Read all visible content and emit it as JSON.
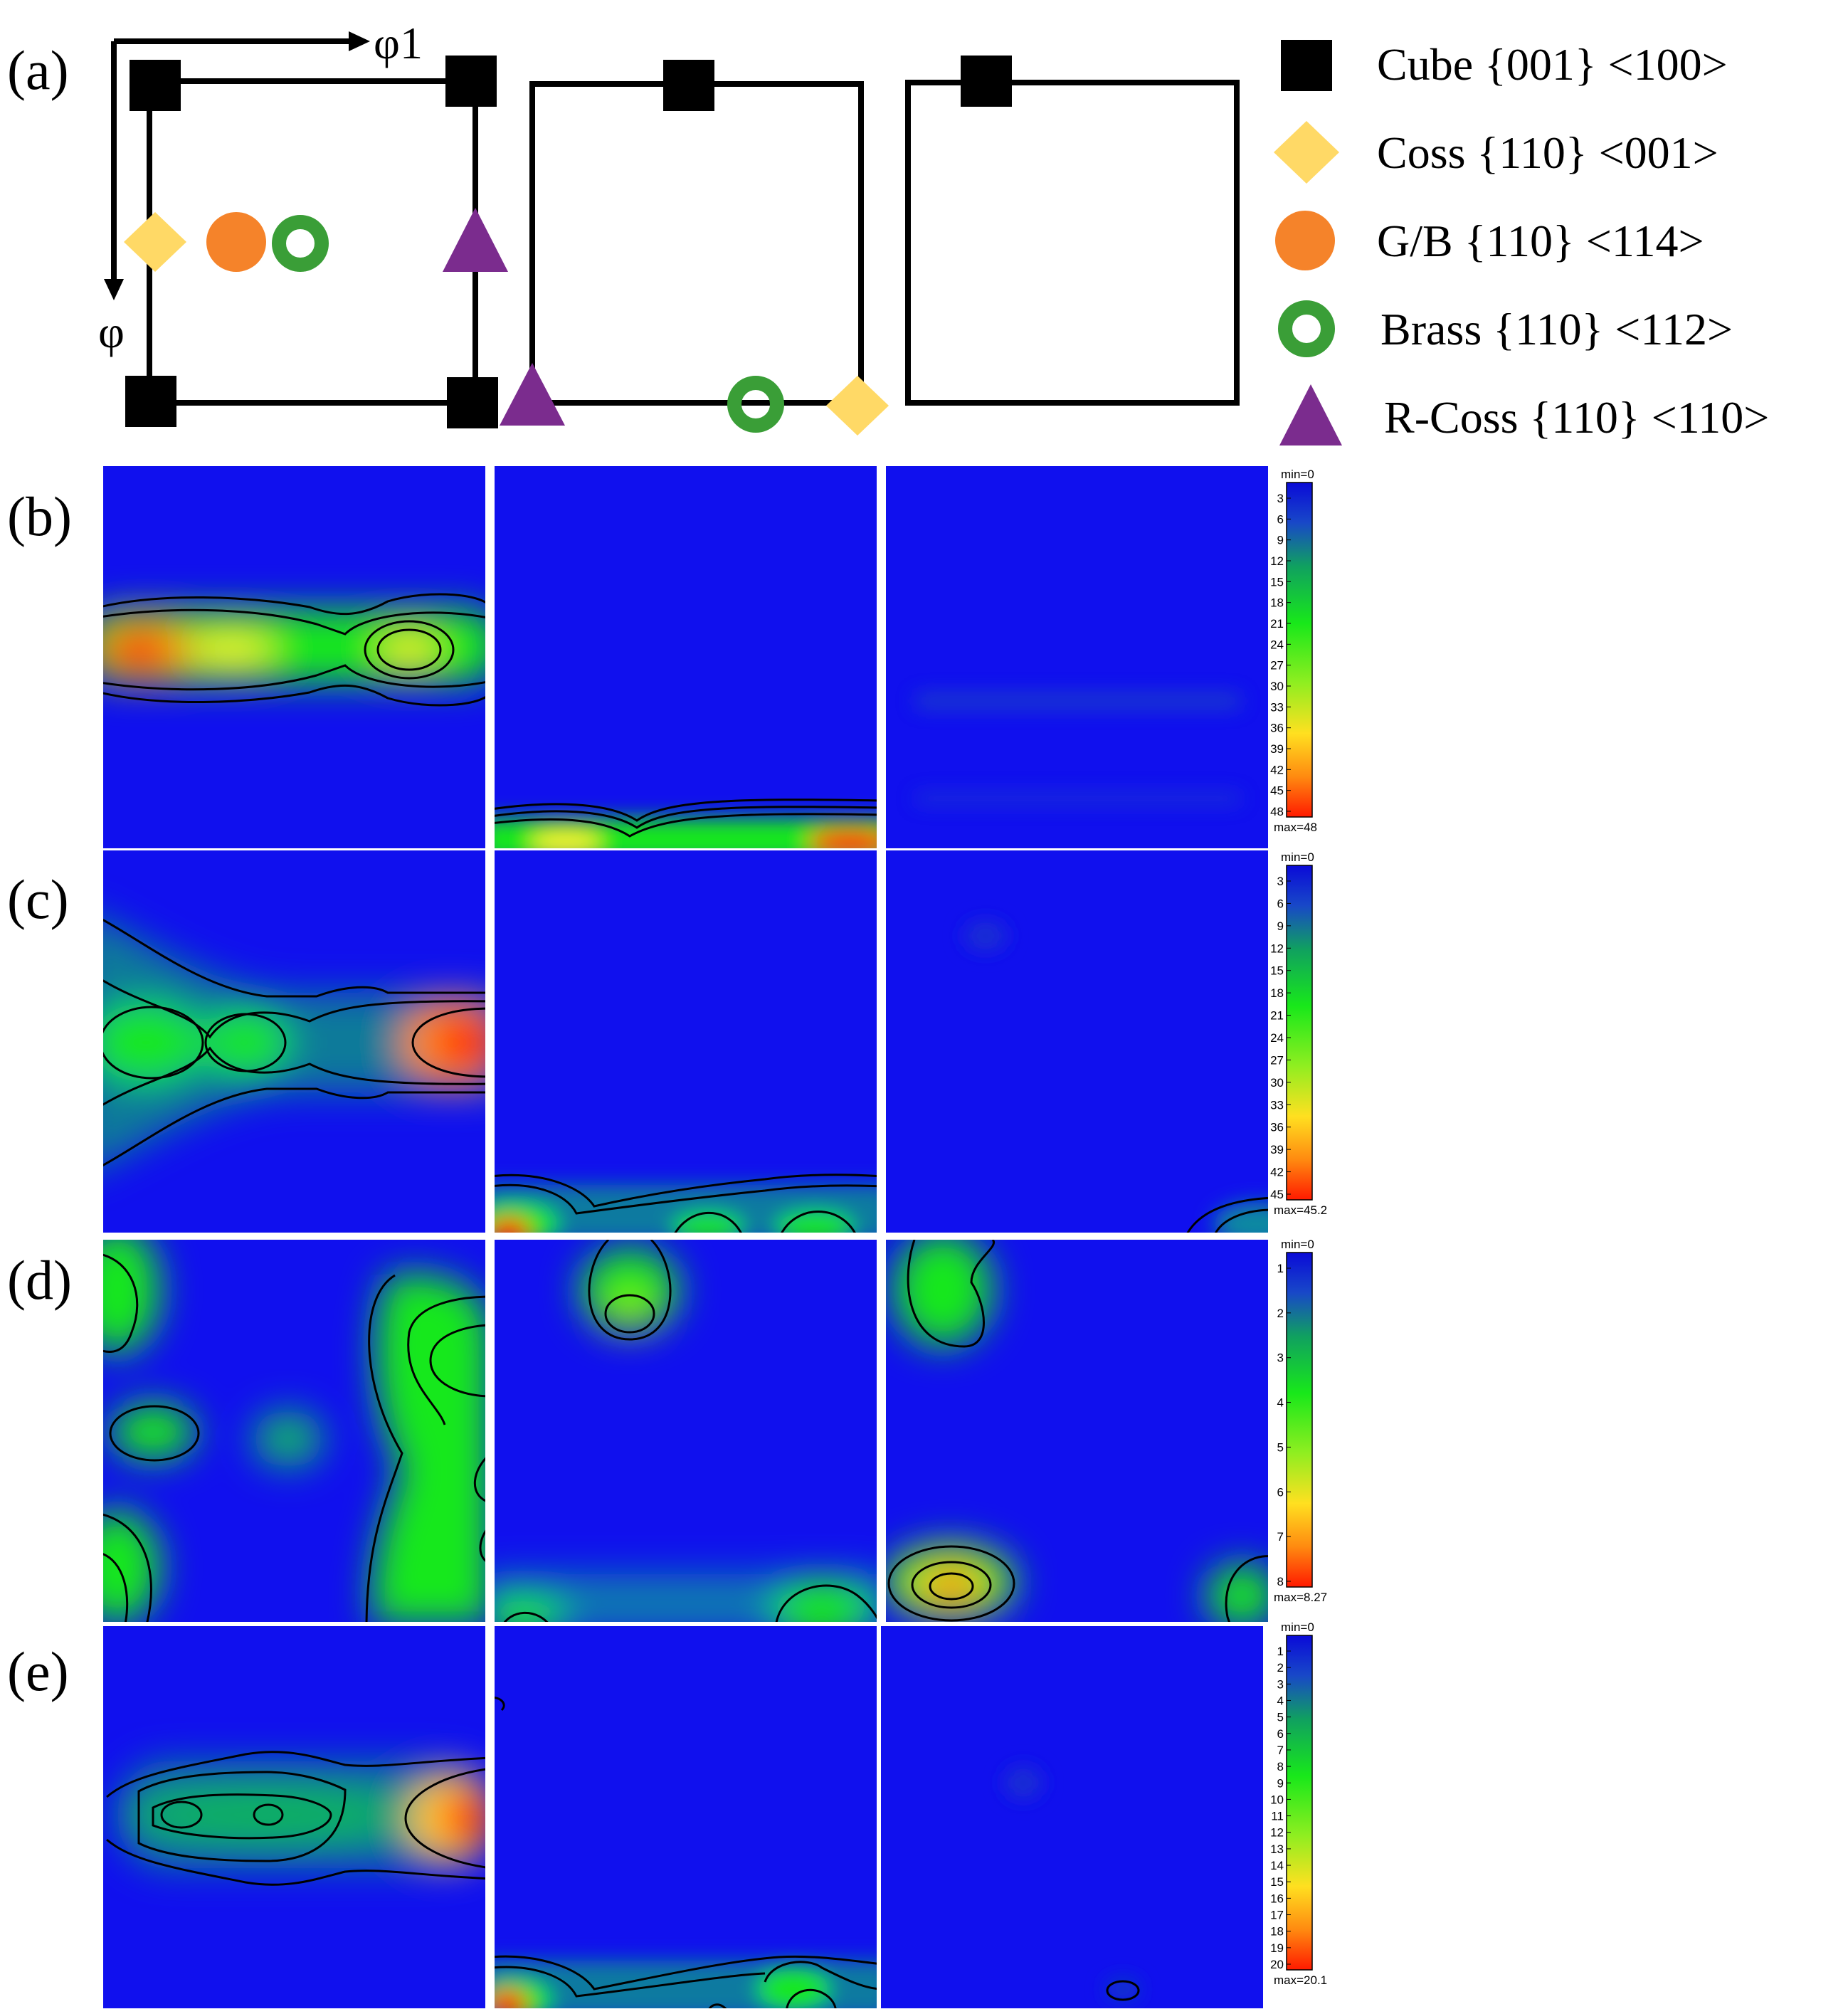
{
  "panel_labels": [
    "(a)",
    "(b)",
    "(c)",
    "(d)",
    "(e)"
  ],
  "axes": {
    "horizontal": "φ1",
    "vertical": "φ"
  },
  "legend": [
    {
      "name": "Cube {001} <100>",
      "shape": "square",
      "color": "#000000"
    },
    {
      "name": "Coss {110} <001>",
      "shape": "diamond",
      "color": "#ffd966"
    },
    {
      "name": "G/B {110} <114>",
      "shape": "circle",
      "color": "#f5832a"
    },
    {
      "name": "Brass {110} <112>",
      "shape": "ring",
      "color": "#3a9e37"
    },
    {
      "name": "R-Coss {110} <110>",
      "shape": "triangle",
      "color": "#7b2c8e"
    }
  ],
  "colors": {
    "background": "#1010ee",
    "mid": "#18e81a",
    "high": "#ff1a00",
    "outline": "#000000"
  },
  "colorbars": [
    {
      "min": "min=0",
      "max": "max=48",
      "ticks": [
        "3",
        "6",
        "9",
        "12",
        "15",
        "18",
        "21",
        "24",
        "27",
        "30",
        "33",
        "36",
        "39",
        "42",
        "45",
        "48"
      ]
    },
    {
      "min": "min=0",
      "max": "max=45.2",
      "ticks": [
        "3",
        "6",
        "9",
        "12",
        "15",
        "18",
        "21",
        "24",
        "27",
        "30",
        "33",
        "36",
        "39",
        "42",
        "45"
      ]
    },
    {
      "min": "min=0",
      "max": "max=8.27",
      "ticks": [
        "1",
        "2",
        "3",
        "4",
        "5",
        "6",
        "7",
        "8"
      ]
    },
    {
      "min": "min=0",
      "max": "max=20.1",
      "ticks": [
        "1",
        "2",
        "3",
        "4",
        "5",
        "6",
        "7",
        "8",
        "9",
        "10",
        "11",
        "12",
        "13",
        "14",
        "15",
        "16",
        "17",
        "18",
        "19",
        "20"
      ]
    }
  ]
}
